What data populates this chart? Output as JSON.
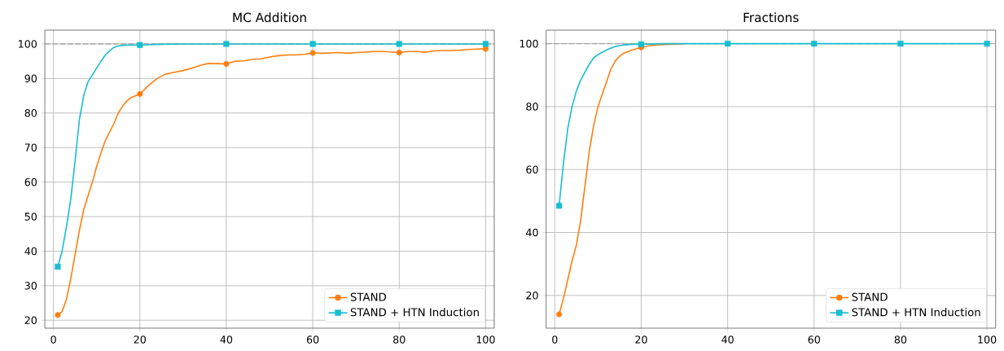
{
  "chart_data": [
    {
      "type": "line",
      "title": "MC Addition",
      "xlim": [
        -2,
        102
      ],
      "ylim": [
        17.7,
        104
      ],
      "xticks": [
        0,
        20,
        40,
        60,
        80,
        100
      ],
      "yticks": [
        20,
        30,
        40,
        50,
        60,
        70,
        80,
        90,
        100
      ],
      "grid": true,
      "legend": "bottom right",
      "line_style": "solid",
      "ref_lines": [
        {
          "axis": "y",
          "value": 100,
          "color": "#a0a0a0",
          "line_style": "dashed"
        }
      ],
      "series": [
        {
          "name": "STAND",
          "color": "#ff7f0e",
          "x": [
            1,
            2,
            3,
            4,
            5,
            6,
            7,
            8,
            9,
            10,
            11,
            12,
            13,
            14,
            15,
            16,
            17,
            18,
            20,
            22,
            24,
            26,
            28,
            30,
            32,
            34,
            36,
            38,
            40,
            42,
            44,
            46,
            48,
            50,
            52,
            54,
            56,
            58,
            60,
            62,
            64,
            66,
            68,
            70,
            72,
            74,
            76,
            78,
            80,
            82,
            84,
            86,
            88,
            90,
            92,
            94,
            96,
            98,
            100
          ],
          "values": [
            21.5,
            22.5,
            26,
            32,
            39,
            46,
            52,
            56,
            60,
            64.5,
            68.5,
            72,
            74.5,
            77,
            80,
            82,
            83.5,
            84.5,
            85.5,
            88,
            90,
            91.3,
            91.8,
            92.3,
            93,
            93.8,
            94.4,
            94.3,
            94.2,
            95,
            95.1,
            95.5,
            95.7,
            96.2,
            96.6,
            96.8,
            96.8,
            97,
            97.4,
            97.3,
            97.4,
            97.5,
            97.3,
            97.5,
            97.6,
            97.8,
            97.8,
            97.7,
            97.5,
            97.8,
            97.8,
            97.6,
            98,
            98.1,
            98.1,
            98.2,
            98.4,
            98.5,
            98.6
          ]
        },
        {
          "type": "scatter",
          "marker": "circle",
          "color": "#ff7f0e",
          "x": [
            1,
            20,
            40,
            60,
            80,
            100
          ],
          "values": [
            21.5,
            85.5,
            94.2,
            97.4,
            97.5,
            98.6
          ]
        },
        {
          "name": "STAND + HTN Induction",
          "color": "#17becf",
          "x": [
            1,
            2,
            3,
            4,
            5,
            6,
            7,
            8,
            9,
            10,
            11,
            12,
            13,
            14,
            15,
            16,
            18,
            20,
            25,
            30,
            40,
            60,
            80,
            100
          ],
          "values": [
            35.5,
            40,
            47,
            55,
            66,
            78,
            85,
            89,
            91,
            93,
            95,
            96.8,
            98,
            99,
            99.4,
            99.6,
            99.7,
            99.7,
            99.9,
            100,
            100,
            100,
            100,
            100
          ]
        },
        {
          "type": "scatter",
          "marker": "square",
          "color": "#17becf",
          "x": [
            1,
            20,
            40,
            60,
            80,
            100
          ],
          "values": [
            35.5,
            99.7,
            100,
            100,
            100,
            100
          ]
        }
      ]
    },
    {
      "type": "line",
      "title": "Fractions",
      "xlim": [
        -2,
        102
      ],
      "ylim": [
        9.6,
        104.3
      ],
      "xticks": [
        0,
        20,
        40,
        60,
        80,
        100
      ],
      "yticks": [
        20,
        40,
        60,
        80,
        100
      ],
      "grid": true,
      "legend": "bottom right",
      "line_style": "solid",
      "ref_lines": [
        {
          "axis": "y",
          "value": 100,
          "color": "#a0a0a0",
          "line_style": "dashed"
        }
      ],
      "series": [
        {
          "name": "STAND",
          "color": "#ff7f0e",
          "x": [
            1,
            2,
            3,
            4,
            5,
            6,
            7,
            8,
            9,
            10,
            11,
            12,
            13,
            14,
            15,
            16,
            17,
            18,
            20,
            22,
            25,
            30
          ],
          "values": [
            14,
            19,
            25,
            31,
            36,
            44,
            55,
            66,
            74,
            80,
            84,
            88,
            92,
            94.5,
            96,
            97,
            97.5,
            98,
            98.8,
            99.4,
            99.7,
            99.9
          ]
        },
        {
          "type": "scatter",
          "marker": "circle",
          "color": "#ff7f0e",
          "x": [
            1,
            20
          ],
          "values": [
            14,
            98.8
          ]
        },
        {
          "name": "STAND + HTN Induction",
          "color": "#17becf",
          "x": [
            1,
            2,
            3,
            4,
            5,
            6,
            7,
            8,
            9,
            10,
            11,
            12,
            13,
            14,
            15,
            16,
            18,
            20,
            25,
            40,
            60,
            80,
            100
          ],
          "values": [
            48.5,
            62,
            73,
            80,
            85,
            88.5,
            91,
            93.5,
            95.5,
            96.5,
            97.3,
            98,
            98.6,
            99.1,
            99.4,
            99.6,
            99.8,
            99.8,
            100,
            100,
            100,
            100,
            100
          ]
        },
        {
          "type": "scatter",
          "marker": "square",
          "color": "#17becf",
          "x": [
            1,
            20,
            40,
            60,
            80,
            100
          ],
          "values": [
            48.5,
            99.8,
            100,
            100,
            100,
            100
          ]
        }
      ]
    }
  ]
}
